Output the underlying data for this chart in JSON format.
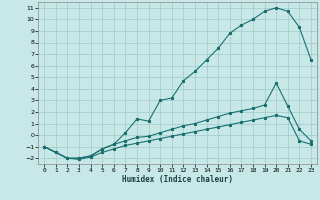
{
  "background_color": "#c8e8e8",
  "grid_color": "#a0c8c8",
  "line_color": "#1a7070",
  "xlabel": "Humidex (Indice chaleur)",
  "xlim": [
    -0.5,
    23.5
  ],
  "ylim": [
    -2.5,
    11.5
  ],
  "xticks": [
    0,
    1,
    2,
    3,
    4,
    5,
    6,
    7,
    8,
    9,
    10,
    11,
    12,
    13,
    14,
    15,
    16,
    17,
    18,
    19,
    20,
    21,
    22,
    23
  ],
  "yticks": [
    -2,
    -1,
    0,
    1,
    2,
    3,
    4,
    5,
    6,
    7,
    8,
    9,
    10,
    11
  ],
  "line1_x": [
    0,
    1,
    2,
    3,
    4,
    5,
    6,
    7,
    8,
    9,
    10,
    11,
    12,
    13,
    14,
    15,
    16,
    17,
    18,
    19,
    20,
    21,
    22,
    23
  ],
  "line1_y": [
    -1.0,
    -1.5,
    -2.0,
    -2.0,
    -1.8,
    -1.2,
    -0.8,
    0.2,
    1.4,
    1.2,
    3.0,
    3.2,
    4.7,
    5.5,
    6.5,
    7.5,
    8.8,
    9.5,
    10.0,
    10.7,
    11.0,
    10.7,
    9.3,
    6.5
  ],
  "line2_x": [
    0,
    1,
    2,
    3,
    4,
    5,
    6,
    7,
    8,
    9,
    10,
    11,
    12,
    13,
    14,
    15,
    16,
    17,
    18,
    19,
    20,
    21,
    22,
    23
  ],
  "line2_y": [
    -1.0,
    -1.5,
    -2.0,
    -2.0,
    -1.8,
    -1.2,
    -0.8,
    -0.5,
    -0.2,
    -0.1,
    0.2,
    0.5,
    0.8,
    1.0,
    1.3,
    1.6,
    1.9,
    2.1,
    2.3,
    2.6,
    4.5,
    2.5,
    0.5,
    -0.5
  ],
  "line3_x": [
    0,
    1,
    2,
    3,
    4,
    5,
    6,
    7,
    8,
    9,
    10,
    11,
    12,
    13,
    14,
    15,
    16,
    17,
    18,
    19,
    20,
    21,
    22,
    23
  ],
  "line3_y": [
    -1.0,
    -1.5,
    -2.0,
    -2.1,
    -1.9,
    -1.5,
    -1.2,
    -0.9,
    -0.7,
    -0.5,
    -0.3,
    -0.1,
    0.1,
    0.3,
    0.5,
    0.7,
    0.9,
    1.1,
    1.3,
    1.5,
    1.7,
    1.5,
    -0.5,
    -0.8
  ]
}
